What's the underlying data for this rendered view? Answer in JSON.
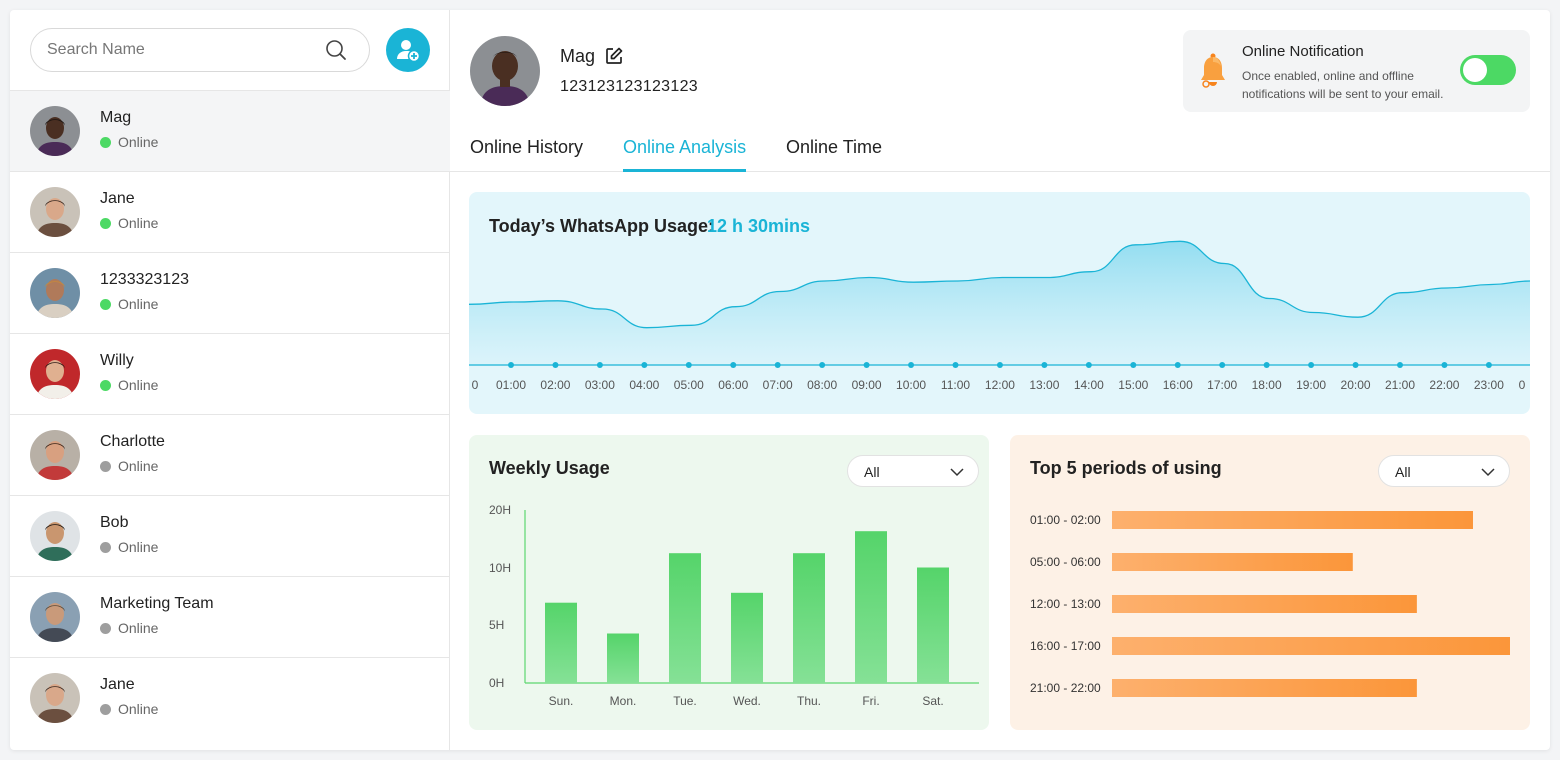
{
  "search": {
    "placeholder": "Search Name"
  },
  "contacts": [
    {
      "name": "Mag",
      "status": "Online",
      "online": true,
      "active": true
    },
    {
      "name": "Jane",
      "status": "Online",
      "online": true,
      "active": false
    },
    {
      "name": "1233323123",
      "status": "Online",
      "online": true,
      "active": false
    },
    {
      "name": "Willy",
      "status": "Online",
      "online": true,
      "active": false
    },
    {
      "name": "Charlotte",
      "status": "Online",
      "online": false,
      "active": false
    },
    {
      "name": "Bob",
      "status": "Online",
      "online": false,
      "active": false
    },
    {
      "name": "Marketing Team",
      "status": "Online",
      "online": false,
      "active": false
    },
    {
      "name": "Jane",
      "status": "Online",
      "online": false,
      "active": false
    }
  ],
  "profile": {
    "name": "Mag",
    "phone": "123123123123123"
  },
  "notification": {
    "title": "Online Notification",
    "description": "Once enabled, online and offline notifications will be sent to your email.",
    "enabled": true
  },
  "tabs": [
    {
      "label": "Online History",
      "active": false
    },
    {
      "label": "Online Analysis",
      "active": true
    },
    {
      "label": "Online Time",
      "active": false
    }
  ],
  "usage": {
    "label": "Today’s WhatsApp Usage:",
    "value": "12 h 30mins"
  },
  "weekly": {
    "title": "Weekly Usage",
    "filter": "All"
  },
  "top": {
    "title": "Top 5 periods of using",
    "filter": "All"
  },
  "colors": {
    "accent": "#1ab4d6",
    "online": "#4cd964",
    "offline": "#9e9e9e",
    "bar_green": "#5cd66f",
    "bar_orange": "#fb9a3f"
  },
  "chart_data": [
    {
      "type": "area",
      "x": [
        "0",
        "01:00",
        "02:00",
        "03:00",
        "04:00",
        "05:00",
        "06:00",
        "07:00",
        "08:00",
        "09:00",
        "10:00",
        "11:00",
        "12:00",
        "13:00",
        "14:00",
        "15:00",
        "16:00",
        "17:00",
        "18:00",
        "19:00",
        "20:00",
        "21:00",
        "22:00",
        "23:00",
        "0"
      ],
      "values": [
        52,
        54,
        55,
        48,
        32,
        34,
        50,
        63,
        72,
        75,
        71,
        72,
        75,
        75,
        80,
        103,
        106,
        87,
        57,
        45,
        41,
        62,
        66,
        69,
        72
      ],
      "grid": false
    },
    {
      "type": "bar",
      "categories": [
        "Sun.",
        "Mon.",
        "Tue.",
        "Wed.",
        "Thu.",
        "Fri.",
        "Sat."
      ],
      "values": [
        7.3,
        4.5,
        11.8,
        8.2,
        11.8,
        13.8,
        10.5
      ],
      "ytick_labels": [
        "0H",
        "5H",
        "10H",
        "20H"
      ],
      "ylim": [
        0,
        20
      ]
    },
    {
      "type": "bar",
      "orientation": "horizontal",
      "categories": [
        "01:00 - 02:00",
        "05:00 - 06:00",
        "12:00 - 13:00",
        "16:00 - 17:00",
        "21:00 - 22:00"
      ],
      "values": [
        0.907,
        0.605,
        0.766,
        1.0,
        0.766
      ]
    }
  ]
}
